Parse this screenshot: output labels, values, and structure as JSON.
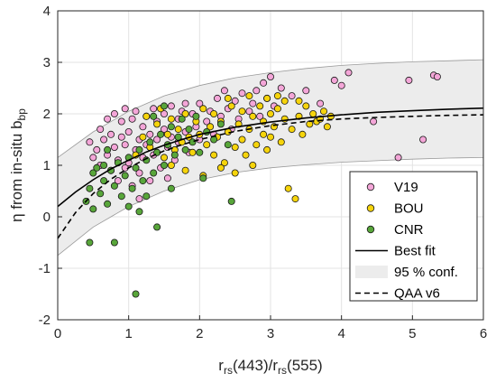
{
  "chart_data": {
    "type": "scatter",
    "title": "",
    "xlabel": {
      "main": "r",
      "sub1": "rs",
      "mid": "(443)/r",
      "sub2": "rs",
      "end": "(555)"
    },
    "ylabel": {
      "main": "η from in-situ b",
      "sub": "bp"
    },
    "xlim": [
      0,
      6
    ],
    "ylim": [
      -2,
      4
    ],
    "xticks": [
      0,
      1,
      2,
      3,
      4,
      5,
      6
    ],
    "yticks": [
      -2,
      -1,
      0,
      1,
      2,
      3,
      4
    ],
    "grid": true,
    "legend_position": "bottom-right",
    "colors": {
      "V19": "#f4a6d8",
      "BOU": "#f6d40b",
      "CNR": "#58a63a",
      "marker_edge": "#1a1a1a",
      "conf_band": "#ececec",
      "conf_edge": "#9a9a9a",
      "best_fit": "#000000",
      "qaa": "#000000"
    },
    "legend": [
      {
        "label": "V19",
        "kind": "marker",
        "series": "V19"
      },
      {
        "label": "BOU",
        "kind": "marker",
        "series": "BOU"
      },
      {
        "label": "CNR",
        "kind": "marker",
        "series": "CNR"
      },
      {
        "label": "Best fit",
        "kind": "line-solid"
      },
      {
        "label": "95 % conf.",
        "kind": "patch"
      },
      {
        "label": "QAA v6",
        "kind": "line-dashed"
      }
    ],
    "lines": {
      "best_fit": {
        "x": [
          0,
          0.25,
          0.5,
          0.75,
          1,
          1.25,
          1.5,
          1.75,
          2,
          2.5,
          3,
          3.5,
          4,
          4.5,
          5,
          5.5,
          6
        ],
        "y": [
          0.2,
          0.48,
          0.72,
          0.93,
          1.1,
          1.26,
          1.39,
          1.5,
          1.6,
          1.74,
          1.84,
          1.92,
          1.98,
          2.03,
          2.06,
          2.09,
          2.11
        ]
      },
      "qaa_v6": {
        "x": [
          0,
          0.25,
          0.5,
          0.75,
          1,
          1.25,
          1.5,
          1.75,
          2,
          2.5,
          3,
          3.5,
          4,
          4.5,
          5,
          5.5,
          6
        ],
        "y": [
          -0.42,
          0.08,
          0.45,
          0.73,
          0.95,
          1.13,
          1.28,
          1.4,
          1.5,
          1.66,
          1.77,
          1.85,
          1.9,
          1.93,
          1.95,
          1.97,
          1.98
        ]
      },
      "conf_upper": {
        "x": [
          0,
          0.5,
          1,
          1.5,
          2,
          2.5,
          3,
          3.5,
          4,
          4.5,
          5,
          5.5,
          6
        ],
        "y": [
          1.15,
          1.65,
          2.05,
          2.35,
          2.55,
          2.7,
          2.8,
          2.88,
          2.94,
          2.98,
          3.01,
          3.03,
          3.05
        ]
      },
      "conf_lower": {
        "x": [
          0,
          0.5,
          1,
          1.5,
          2,
          2.5,
          3,
          3.5,
          4,
          4.5,
          5,
          5.5,
          6
        ],
        "y": [
          -0.75,
          -0.2,
          0.2,
          0.5,
          0.72,
          0.86,
          0.95,
          1.01,
          1.06,
          1.09,
          1.12,
          1.14,
          1.15
        ]
      }
    },
    "series": [
      {
        "name": "V19",
        "points": [
          [
            0.45,
            1.45
          ],
          [
            0.5,
            1.15
          ],
          [
            0.55,
            1.3
          ],
          [
            0.6,
            1.7
          ],
          [
            0.6,
            1.0
          ],
          [
            0.65,
            1.5
          ],
          [
            0.7,
            1.2
          ],
          [
            0.7,
            1.9
          ],
          [
            0.75,
            0.9
          ],
          [
            0.75,
            1.6
          ],
          [
            0.8,
            1.35
          ],
          [
            0.8,
            2.0
          ],
          [
            0.85,
            0.7
          ],
          [
            0.85,
            1.1
          ],
          [
            0.9,
            1.55
          ],
          [
            0.9,
            1.85
          ],
          [
            0.95,
            0.95
          ],
          [
            0.95,
            1.4
          ],
          [
            1.0,
            1.65
          ],
          [
            1.0,
            1.05
          ],
          [
            1.05,
            1.9
          ],
          [
            1.05,
            0.6
          ],
          [
            1.1,
            1.3
          ],
          [
            1.1,
            2.05
          ],
          [
            1.15,
            1.5
          ],
          [
            1.15,
            0.85
          ],
          [
            1.2,
            1.75
          ],
          [
            1.2,
            1.15
          ],
          [
            1.25,
            1.95
          ],
          [
            1.25,
            1.4
          ],
          [
            1.3,
            0.7
          ],
          [
            1.3,
            1.6
          ],
          [
            1.35,
            2.1
          ],
          [
            1.35,
            1.2
          ],
          [
            1.4,
            1.85
          ],
          [
            1.4,
            1.5
          ],
          [
            1.45,
            0.95
          ],
          [
            1.5,
            1.7
          ],
          [
            1.5,
            2.0
          ],
          [
            1.55,
            1.35
          ],
          [
            1.6,
            2.15
          ],
          [
            1.6,
            1.55
          ],
          [
            1.65,
            1.1
          ],
          [
            1.7,
            1.9
          ],
          [
            1.7,
            1.45
          ],
          [
            1.75,
            2.05
          ],
          [
            1.8,
            1.65
          ],
          [
            1.85,
            1.25
          ],
          [
            1.9,
            2.0
          ],
          [
            1.95,
            1.75
          ],
          [
            2.0,
            2.2
          ],
          [
            2.0,
            1.5
          ],
          [
            2.1,
            1.85
          ],
          [
            2.15,
            2.05
          ],
          [
            2.2,
            1.6
          ],
          [
            2.25,
            2.3
          ],
          [
            2.3,
            1.95
          ],
          [
            2.4,
            2.1
          ],
          [
            2.45,
            1.7
          ],
          [
            2.5,
            2.25
          ],
          [
            2.55,
            1.9
          ],
          [
            2.6,
            2.4
          ],
          [
            2.7,
            2.05
          ],
          [
            2.75,
            2.2
          ],
          [
            2.8,
            2.45
          ],
          [
            2.85,
            1.95
          ],
          [
            2.9,
            2.6
          ],
          [
            2.95,
            2.3
          ],
          [
            3.0,
            2.72
          ],
          [
            3.05,
            2.15
          ],
          [
            3.15,
            2.5
          ],
          [
            3.3,
            2.35
          ],
          [
            3.5,
            2.45
          ],
          [
            3.7,
            2.2
          ],
          [
            3.9,
            2.65
          ],
          [
            4.0,
            2.55
          ],
          [
            4.1,
            2.8
          ],
          [
            4.45,
            1.85
          ],
          [
            4.8,
            1.15
          ],
          [
            4.95,
            2.65
          ],
          [
            5.15,
            1.5
          ],
          [
            5.3,
            2.75
          ],
          [
            5.35,
            2.72
          ],
          [
            1.15,
            0.35
          ],
          [
            1.55,
            0.75
          ],
          [
            0.95,
            2.1
          ],
          [
            1.8,
            2.2
          ],
          [
            2.35,
            2.45
          ]
        ]
      },
      {
        "name": "BOU",
        "points": [
          [
            1.1,
            1.2
          ],
          [
            1.2,
            1.55
          ],
          [
            1.3,
            1.35
          ],
          [
            1.4,
            1.8
          ],
          [
            1.5,
            1.15
          ],
          [
            1.55,
            1.6
          ],
          [
            1.6,
            1.9
          ],
          [
            1.65,
            1.3
          ],
          [
            1.7,
            1.7
          ],
          [
            1.75,
            1.45
          ],
          [
            1.8,
            2.0
          ],
          [
            1.85,
            1.55
          ],
          [
            1.9,
            1.25
          ],
          [
            1.95,
            1.85
          ],
          [
            2.0,
            1.6
          ],
          [
            2.05,
            2.1
          ],
          [
            2.1,
            1.4
          ],
          [
            2.15,
            1.75
          ],
          [
            2.2,
            1.2
          ],
          [
            2.2,
            2.0
          ],
          [
            2.25,
            1.55
          ],
          [
            2.3,
            1.85
          ],
          [
            2.35,
            1.05
          ],
          [
            2.4,
            1.65
          ],
          [
            2.45,
            2.15
          ],
          [
            2.5,
            1.35
          ],
          [
            2.55,
            1.8
          ],
          [
            2.6,
            1.5
          ],
          [
            2.6,
            2.05
          ],
          [
            2.65,
            1.2
          ],
          [
            2.7,
            1.7
          ],
          [
            2.75,
            1.95
          ],
          [
            2.8,
            1.4
          ],
          [
            2.85,
            2.15
          ],
          [
            2.9,
            1.6
          ],
          [
            2.9,
            1.85
          ],
          [
            2.95,
            1.3
          ],
          [
            3.0,
            2.0
          ],
          [
            3.0,
            1.55
          ],
          [
            3.05,
            1.75
          ],
          [
            3.1,
            2.1
          ],
          [
            3.15,
            1.45
          ],
          [
            3.2,
            1.9
          ],
          [
            3.25,
            0.55
          ],
          [
            3.3,
            1.7
          ],
          [
            3.35,
            0.35
          ],
          [
            3.4,
            1.95
          ],
          [
            3.45,
            1.6
          ],
          [
            3.5,
            2.15
          ],
          [
            3.55,
            1.8
          ],
          [
            3.6,
            2.0
          ],
          [
            3.65,
            1.85
          ],
          [
            3.7,
            1.9
          ],
          [
            3.75,
            2.05
          ],
          [
            3.8,
            1.75
          ],
          [
            3.85,
            1.95
          ],
          [
            2.05,
            0.8
          ],
          [
            2.3,
            0.95
          ],
          [
            2.5,
            0.85
          ],
          [
            2.75,
            1.0
          ],
          [
            1.8,
            0.9
          ],
          [
            1.6,
            1.0
          ],
          [
            2.95,
            2.3
          ],
          [
            3.1,
            2.35
          ],
          [
            2.4,
            2.3
          ],
          [
            2.7,
            2.35
          ],
          [
            1.45,
            2.1
          ],
          [
            1.25,
            1.95
          ],
          [
            3.2,
            2.25
          ],
          [
            3.4,
            2.25
          ]
        ]
      },
      {
        "name": "CNR",
        "points": [
          [
            0.4,
            0.3
          ],
          [
            0.45,
            0.55
          ],
          [
            0.5,
            0.15
          ],
          [
            0.5,
            0.85
          ],
          [
            0.55,
            0.95
          ],
          [
            0.6,
            0.45
          ],
          [
            0.65,
            0.7
          ],
          [
            0.7,
            0.25
          ],
          [
            0.75,
            0.9
          ],
          [
            0.8,
            0.6
          ],
          [
            0.85,
            1.05
          ],
          [
            0.9,
            0.4
          ],
          [
            0.95,
            0.8
          ],
          [
            1.0,
            1.15
          ],
          [
            1.05,
            0.55
          ],
          [
            1.1,
            0.95
          ],
          [
            1.15,
            1.3
          ],
          [
            1.2,
            0.7
          ],
          [
            1.25,
            1.1
          ],
          [
            1.3,
            1.45
          ],
          [
            1.35,
            0.85
          ],
          [
            1.4,
            1.25
          ],
          [
            1.45,
            1.6
          ],
          [
            1.5,
            1.0
          ],
          [
            1.55,
            1.4
          ],
          [
            1.6,
            1.75
          ],
          [
            1.65,
            1.2
          ],
          [
            1.7,
            1.55
          ],
          [
            1.75,
            1.9
          ],
          [
            1.8,
            1.3
          ],
          [
            1.85,
            1.7
          ],
          [
            1.9,
            1.45
          ],
          [
            1.95,
            1.95
          ],
          [
            2.0,
            1.25
          ],
          [
            2.1,
            1.65
          ],
          [
            2.2,
            1.5
          ],
          [
            2.3,
            1.8
          ],
          [
            2.4,
            1.4
          ],
          [
            0.45,
            -0.5
          ],
          [
            0.8,
            -0.5
          ],
          [
            1.4,
            -0.2
          ],
          [
            1.1,
            -1.5
          ],
          [
            2.45,
            0.3
          ],
          [
            1.6,
            0.55
          ],
          [
            1.25,
            0.4
          ],
          [
            0.7,
            1.3
          ],
          [
            0.65,
            1.0
          ],
          [
            1.0,
            0.2
          ],
          [
            1.35,
            1.95
          ],
          [
            1.5,
            2.15
          ],
          [
            2.05,
            0.75
          ],
          [
            1.15,
            0.1
          ]
        ]
      }
    ]
  }
}
